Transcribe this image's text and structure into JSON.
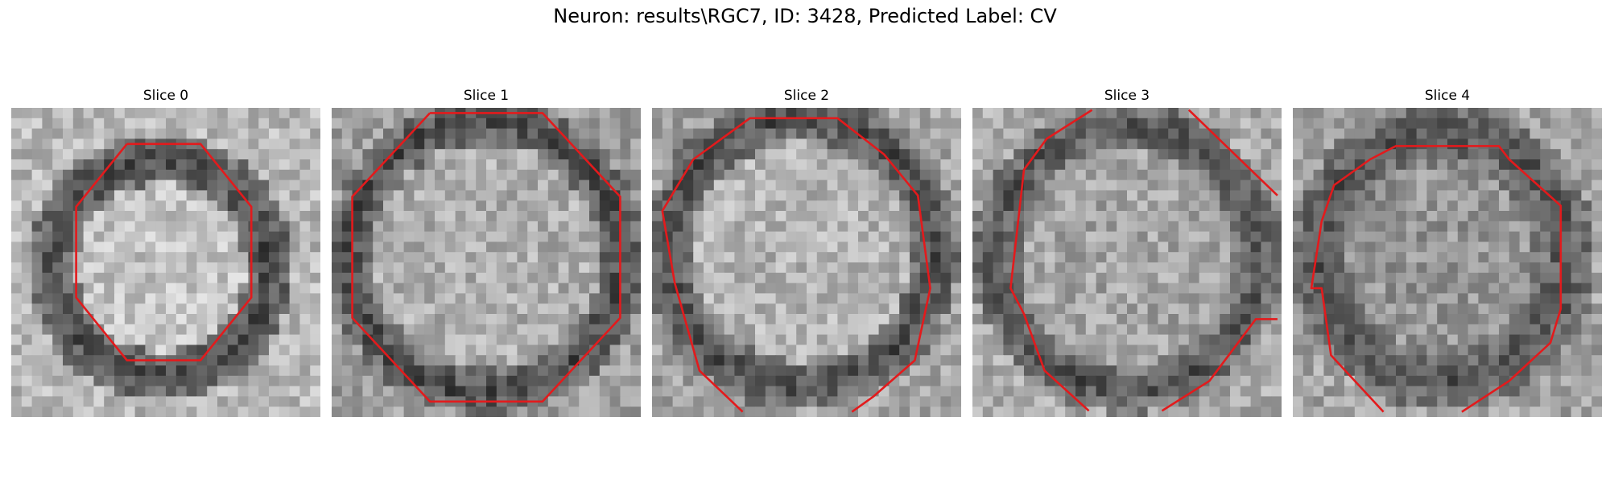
{
  "figure": {
    "title": "Neuron: results\\RGC7, ID: 3428, Predicted Label: CV"
  },
  "contour_color": "#e31a1c",
  "slices": [
    {
      "label": "Slice 0"
    },
    {
      "label": "Slice 1"
    },
    {
      "label": "Slice 2"
    },
    {
      "label": "Slice 3"
    },
    {
      "label": "Slice 4"
    }
  ]
}
